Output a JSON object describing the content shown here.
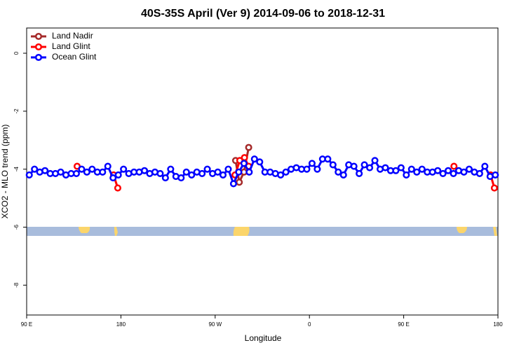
{
  "chart_data": {
    "type": "line",
    "title": "40S-35S April (Ver 9)   2014-09-06 to 2018-12-31",
    "x_label": "Longitude",
    "y_label": "XCO2 - MLO trend (ppm)",
    "xlim": [
      90,
      540
    ],
    "ylim": [
      -9.03,
      0.87
    ],
    "xticks": [
      {
        "value": 90,
        "label": "90 E"
      },
      180,
      {
        "value": 270,
        "label": "90 W"
      },
      {
        "value": 360,
        "label": "0"
      },
      {
        "value": 450,
        "label": "90 E"
      },
      {
        "value": 540,
        "label": "180"
      }
    ],
    "yticks": [
      0,
      -2,
      -4,
      -6,
      -8
    ],
    "legend": "top-left",
    "series": [
      {
        "name": "Land Nadir",
        "color": "#a52a2a",
        "x": [
          289.5,
          293,
          297.5,
          302
        ],
        "values": [
          -3.7,
          -4.45,
          -4.1,
          -3.25
        ]
      },
      {
        "name": "Land Glint",
        "color": "#ff0000",
        "x": [
          138.2,
          155,
          173,
          177,
          250,
          289,
          293.5,
          298,
          302,
          400,
          498,
          520,
          533,
          536.6
        ],
        "values": [
          -3.9,
          null,
          -4.2,
          -4.65,
          null,
          -4.2,
          -3.7,
          -3.6,
          -3.9,
          null,
          -3.9,
          null,
          -4.2,
          -4.65
        ]
      },
      {
        "name": "Ocean Glint",
        "color": "#0000ff",
        "x": [
          92.5,
          97.5,
          102.5,
          107.5,
          112.5,
          117.5,
          122.5,
          127.5,
          132.5,
          137.5,
          142.5,
          147.5,
          152.5,
          157.5,
          162.5,
          167.5,
          172.5,
          177.5,
          182.5,
          187.5,
          192.5,
          197.5,
          202.5,
          207.5,
          212.5,
          217.5,
          222.5,
          227.5,
          232.5,
          237.5,
          242.5,
          247.5,
          252.5,
          257.5,
          262.5,
          267.5,
          272.5,
          277.5,
          282.5,
          287.5,
          292.5,
          297.5,
          302.5,
          307.5,
          312.5,
          317.5,
          322.5,
          327.5,
          332.5,
          337.5,
          342.5,
          347.5,
          352.5,
          357.5,
          362.5,
          367.5,
          372.5,
          377.5,
          382.5,
          387.5,
          392.5,
          397.5,
          402.5,
          407.5,
          412.5,
          417.5,
          422.5,
          427.5,
          432.5,
          437.5,
          442.5,
          447.5,
          452.5,
          457.5,
          462.5,
          467.5,
          472.5,
          477.5,
          482.5,
          487.5,
          492.5,
          497.5,
          502.5,
          507.5,
          512.5,
          517.5,
          522.5,
          527.5,
          532.5,
          537.5
        ],
        "values": [
          -4.2,
          -4.0,
          -4.1,
          -4.05,
          -4.15,
          -4.15,
          -4.1,
          -4.2,
          -4.15,
          -4.15,
          -4.0,
          -4.1,
          -4.0,
          -4.1,
          -4.1,
          -3.9,
          -4.3,
          -4.2,
          -4.0,
          -4.15,
          -4.1,
          -4.1,
          -4.05,
          -4.15,
          -4.1,
          -4.15,
          -4.3,
          -4.0,
          -4.25,
          -4.3,
          -4.1,
          -4.2,
          -4.1,
          -4.15,
          -4.0,
          -4.15,
          -4.1,
          -4.2,
          -4.0,
          -4.5,
          -4.1,
          -3.8,
          -4.1,
          -3.65,
          -3.75,
          -4.1,
          -4.1,
          -4.15,
          -4.2,
          -4.1,
          -4.0,
          -3.95,
          -4.0,
          -4.0,
          -3.8,
          -4.0,
          -3.65,
          -3.65,
          -3.85,
          -4.1,
          -4.2,
          -3.85,
          -3.9,
          -4.15,
          -3.85,
          -3.95,
          -3.7,
          -4.0,
          -3.95,
          -4.05,
          -4.05,
          -3.95,
          -4.2,
          -4.0,
          -4.1,
          -4.0,
          -4.1,
          -4.1,
          -4.05,
          -4.15,
          -4.05,
          -4.15,
          -4.05,
          -4.1,
          -4.0,
          -4.1,
          -4.15,
          -3.9,
          -4.25,
          -4.2
        ]
      }
    ]
  }
}
